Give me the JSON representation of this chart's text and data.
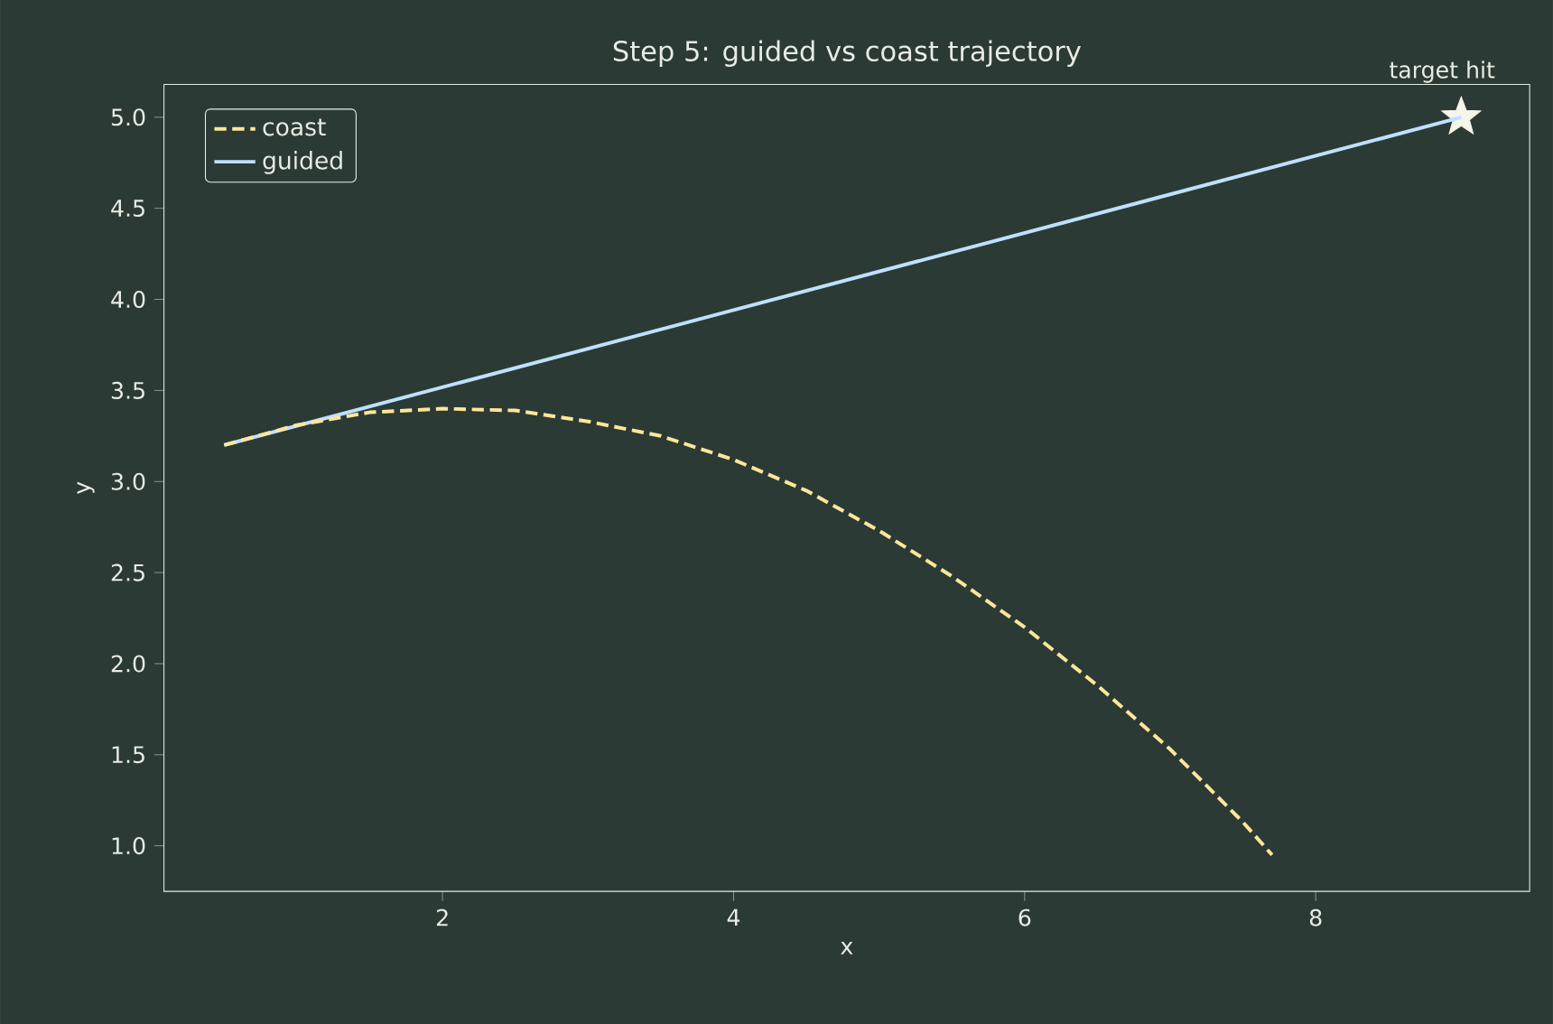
{
  "chart_data": {
    "type": "line",
    "title": "Step 5: guided vs coast trajectory",
    "xlabel": "x",
    "ylabel": "y",
    "xlim": [
      0.086,
      9.47
    ],
    "ylim": [
      0.75,
      5.18
    ],
    "xticks": [
      2,
      4,
      6,
      8
    ],
    "yticks": [
      {
        "value": 1.0,
        "label": "1.0"
      },
      {
        "value": 1.5,
        "label": "1.5"
      },
      {
        "value": 2.0,
        "label": "2.0"
      },
      {
        "value": 2.5,
        "label": "2.5"
      },
      {
        "value": 3.0,
        "label": "3.0"
      },
      {
        "value": 3.5,
        "label": "3.5"
      },
      {
        "value": 4.0,
        "label": "4.0"
      },
      {
        "value": 4.5,
        "label": "4.5"
      },
      {
        "value": 5.0,
        "label": "5.0"
      }
    ],
    "legend": "top left",
    "grid": false,
    "series": [
      {
        "name": "coast",
        "color": "#ffe699",
        "line_style": "dashed",
        "x": [
          0.5,
          1,
          1.5,
          2,
          2.5,
          3,
          3.5,
          4,
          4.5,
          5,
          5.5,
          6,
          6.5,
          7,
          7.5,
          7.7
        ],
        "values": [
          3.2,
          3.31,
          3.38,
          3.4,
          3.39,
          3.33,
          3.25,
          3.12,
          2.95,
          2.73,
          2.48,
          2.2,
          1.88,
          1.53,
          1.13,
          0.95
        ]
      },
      {
        "name": "guided",
        "color": "#bfe0ff",
        "line_style": "solid",
        "x": [
          0.5,
          9
        ],
        "values": [
          3.2,
          5.0
        ]
      },
      {
        "type": "scatter",
        "marker": "star",
        "color": "#f5f5ea",
        "x": [
          9
        ],
        "values": [
          5.0
        ]
      }
    ],
    "annotations": [
      {
        "text": "target hit",
        "x": 9,
        "y": 5.0
      }
    ]
  }
}
